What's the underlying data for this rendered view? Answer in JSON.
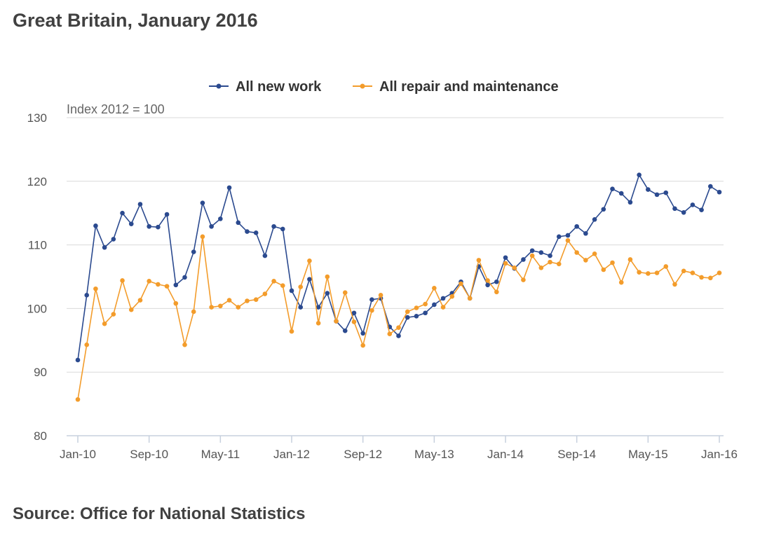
{
  "header": {
    "title": "Great Britain, January 2016"
  },
  "footer": {
    "source": "Source: Office for National Statistics"
  },
  "chart_data": {
    "type": "line",
    "title": "Great Britain, January 2016",
    "ylabel": "Index 2012 = 100",
    "ylim": [
      80,
      130
    ],
    "yticks": [
      80,
      90,
      100,
      110,
      120,
      130
    ],
    "xticks": [
      "Jan-10",
      "Sep-10",
      "May-11",
      "Jan-12",
      "Sep-12",
      "May-13",
      "Jan-14",
      "Sep-14",
      "May-15",
      "Jan-16"
    ],
    "xtick_every": 8,
    "grid": true,
    "legend_position": "top-center",
    "x_start": "Jan-10",
    "x_end": "Jan-16",
    "series": [
      {
        "name": "All new work",
        "color": "#2b4a8f",
        "values": [
          91.9,
          102.1,
          113.0,
          109.6,
          110.9,
          115.0,
          113.3,
          116.4,
          112.9,
          112.8,
          114.8,
          103.7,
          104.9,
          108.9,
          116.6,
          112.9,
          114.1,
          119.0,
          113.5,
          112.1,
          111.9,
          108.3,
          112.9,
          112.5,
          102.8,
          100.2,
          104.6,
          100.2,
          102.4,
          98.0,
          96.5,
          99.3,
          96.1,
          101.4,
          101.6,
          97.1,
          95.7,
          98.6,
          98.8,
          99.3,
          100.6,
          101.6,
          102.4,
          104.2,
          101.6,
          106.6,
          103.7,
          104.2,
          108.0,
          106.3,
          107.7,
          109.1,
          108.8,
          108.3,
          111.3,
          111.5,
          112.9,
          111.8,
          114.0,
          115.6,
          118.8,
          118.1,
          116.7,
          121.0,
          118.7,
          117.9,
          118.2,
          115.7,
          115.1,
          116.3,
          115.5,
          119.2,
          118.3
        ]
      },
      {
        "name": "All repair and maintenance",
        "color": "#f39c2b",
        "values": [
          85.7,
          94.3,
          103.1,
          97.6,
          99.1,
          104.4,
          99.8,
          101.3,
          104.3,
          103.8,
          103.5,
          100.8,
          94.3,
          99.5,
          111.3,
          100.2,
          100.4,
          101.3,
          100.2,
          101.2,
          101.4,
          102.3,
          104.3,
          103.6,
          96.4,
          103.4,
          107.5,
          97.7,
          105.0,
          98.0,
          102.5,
          97.9,
          94.2,
          99.7,
          102.1,
          96.0,
          97.0,
          99.5,
          100.1,
          100.7,
          103.2,
          100.2,
          101.9,
          103.9,
          101.6,
          107.6,
          104.4,
          102.6,
          107.1,
          106.4,
          104.5,
          108.3,
          106.4,
          107.3,
          107.0,
          110.7,
          108.8,
          107.6,
          108.6,
          106.1,
          107.2,
          104.1,
          107.7,
          105.7,
          105.5,
          105.6,
          106.6,
          103.8,
          105.9,
          105.6,
          104.9,
          104.8,
          105.6
        ]
      }
    ]
  }
}
